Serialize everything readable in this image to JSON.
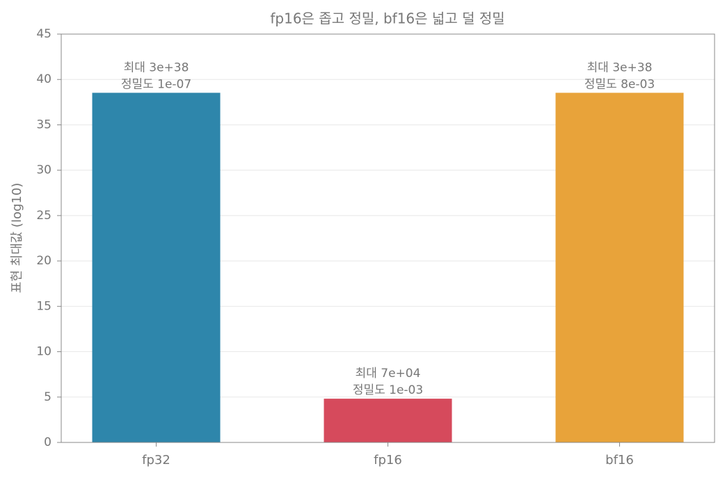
{
  "chart_data": {
    "type": "bar",
    "title": "fp16은 좁고 정밀, bf16은 넓고 덜 정밀",
    "y_label": "표현 최대값 (log10)",
    "categories": [
      "fp32",
      "fp16",
      "bf16"
    ],
    "values": [
      38.53,
      4.82,
      38.53
    ],
    "colors": [
      "#2e86ab",
      "#d64a5c",
      "#e8a33a"
    ],
    "annotations": [
      [
        "최대 3e+38",
        "정밀도 1e-07"
      ],
      [
        "최대 7e+04",
        "정밀도 1e-03"
      ],
      [
        "최대 3e+38",
        "정밀도 8e-03"
      ]
    ],
    "ylim": [
      0,
      45
    ],
    "yticks": [
      0,
      5,
      10,
      15,
      20,
      25,
      30,
      35,
      40,
      45
    ],
    "grid": true
  }
}
